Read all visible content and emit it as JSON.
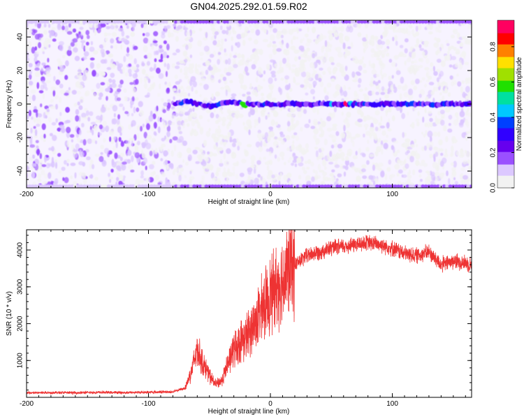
{
  "title": "GN04.2025.292.01.59.R02",
  "chart_data": [
    {
      "type": "heatmap",
      "title": "GN04.2025.292.01.59.R02",
      "xlabel": "Height of straight line (km)",
      "ylabel": "Frequency (Hz)",
      "xlim": [
        -200,
        165
      ],
      "ylim": [
        -50,
        50
      ],
      "x_ticks": [
        -200,
        -100,
        0,
        100
      ],
      "y_ticks": [
        -40,
        -20,
        0,
        20,
        40
      ],
      "colorbar": {
        "label": "Normalized spectral amplitude",
        "range": [
          0,
          0.95
        ],
        "ticks": [
          0.0,
          0.2,
          0.4,
          0.6,
          0.8
        ],
        "tick_labels": [
          "0.0",
          "0.2",
          "0.4",
          "0.6",
          "0.8"
        ],
        "colors": [
          "#f2f2f2",
          "#dcc8ff",
          "#9a50ff",
          "#6600ee",
          "#3000ff",
          "#0040ff",
          "#00c8ff",
          "#00e0a0",
          "#20e000",
          "#a0e000",
          "#ffe000",
          "#ff8000",
          "#ff0000",
          "#ff0060"
        ]
      },
      "signal_band": {
        "frequency_hz": 0,
        "x_start": -78,
        "x_end": 165,
        "peak_x": [
          62
        ],
        "peak_value": 0.9,
        "notes": "Dominant band near 0 Hz from about -78 km onward; diffuse broadband noise below -80 km"
      }
    },
    {
      "type": "line",
      "xlabel": "Height of straight line (km)",
      "ylabel": "SNR (10 * v/v)",
      "xlim": [
        -200,
        165
      ],
      "ylim": [
        0,
        4550
      ],
      "x_ticks": [
        -200,
        -100,
        0,
        100
      ],
      "y_ticks": [
        1000,
        2000,
        3000,
        4000
      ],
      "series": [
        {
          "name": "SNR",
          "color": "#ee3333",
          "x": [
            -200,
            -180,
            -160,
            -140,
            -120,
            -100,
            -80,
            -70,
            -65,
            -60,
            -55,
            -50,
            -45,
            -40,
            -35,
            -30,
            -25,
            -20,
            -15,
            -10,
            -5,
            0,
            5,
            10,
            15,
            20,
            30,
            40,
            50,
            60,
            70,
            80,
            90,
            100,
            110,
            120,
            130,
            140,
            150,
            160,
            165
          ],
          "values": [
            120,
            130,
            125,
            135,
            130,
            140,
            150,
            250,
            700,
            1300,
            900,
            600,
            350,
            450,
            900,
            1300,
            1500,
            1650,
            1900,
            2200,
            2500,
            2800,
            3000,
            3200,
            3450,
            3600,
            3850,
            3950,
            4050,
            4100,
            4150,
            4200,
            4150,
            4050,
            3900,
            3850,
            3950,
            3600,
            3700,
            3650,
            3600
          ]
        }
      ]
    }
  ]
}
